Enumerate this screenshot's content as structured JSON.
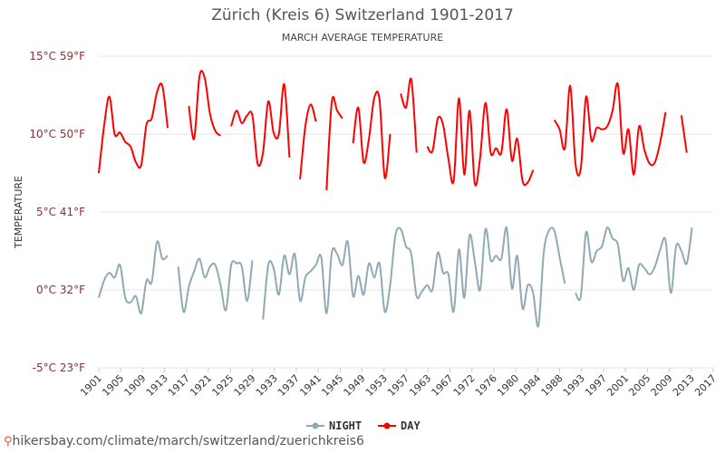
{
  "chart_data": {
    "type": "line",
    "title": "Zürich (Kreis 6) Switzerland 1901-2017",
    "subtitle": "MARCH AVERAGE TEMPERATURE",
    "ylabel": "TEMPERATURE",
    "xlabel": "",
    "ylim": [
      -5,
      15
    ],
    "xlim": [
      1901,
      2017
    ],
    "grid": true,
    "legend_position": "bottom-center",
    "y_ticks": [
      {
        "value": 15,
        "label": "15°C 59°F"
      },
      {
        "value": 10,
        "label": "10°C 50°F"
      },
      {
        "value": 5,
        "label": "5°C 41°F"
      },
      {
        "value": 0,
        "label": "0°C 32°F"
      },
      {
        "value": -5,
        "label": "-5°C 23°F"
      }
    ],
    "x_ticks": [
      "1901",
      "1905",
      "1909",
      "1913",
      "1917",
      "1921",
      "1925",
      "1929",
      "1933",
      "1937",
      "1941",
      "1945",
      "1949",
      "1953",
      "1957",
      "1963",
      "1967",
      "1972",
      "1976",
      "1980",
      "1984",
      "1988",
      "1993",
      "1997",
      "2001",
      "2005",
      "2009",
      "2013",
      "2017"
    ],
    "series": [
      {
        "name": "DAY",
        "color": "#ff0000",
        "points": [
          [
            1901,
            7.5
          ],
          [
            1902,
            10.5
          ],
          [
            1903,
            12.4
          ],
          [
            1904,
            10.0
          ],
          [
            1905,
            10.1
          ],
          [
            1906,
            9.5
          ],
          [
            1907,
            9.2
          ],
          [
            1908,
            8.2
          ],
          [
            1909,
            8.0
          ],
          [
            1910,
            10.6
          ],
          [
            1911,
            11.0
          ],
          [
            1912,
            12.7
          ],
          [
            1913,
            13.1
          ],
          [
            1914,
            10.4
          ],
          [
            1918,
            11.8
          ],
          [
            1919,
            9.7
          ],
          [
            1920,
            13.7
          ],
          [
            1921,
            13.6
          ],
          [
            1922,
            11.3
          ],
          [
            1923,
            10.2
          ],
          [
            1924,
            9.9
          ],
          [
            1926,
            10.5
          ],
          [
            1927,
            11.5
          ],
          [
            1928,
            10.7
          ],
          [
            1929,
            11.2
          ],
          [
            1930,
            11.2
          ],
          [
            1931,
            8.1
          ],
          [
            1932,
            8.8
          ],
          [
            1933,
            12.1
          ],
          [
            1934,
            10.1
          ],
          [
            1935,
            10.0
          ],
          [
            1936,
            13.2
          ],
          [
            1937,
            8.5
          ],
          [
            1939,
            7.1
          ],
          [
            1940,
            10.5
          ],
          [
            1941,
            11.9
          ],
          [
            1942,
            10.8
          ],
          [
            1944,
            6.4
          ],
          [
            1945,
            12.1
          ],
          [
            1946,
            11.5
          ],
          [
            1947,
            11.0
          ],
          [
            1949,
            9.4
          ],
          [
            1950,
            11.7
          ],
          [
            1951,
            8.2
          ],
          [
            1952,
            9.7
          ],
          [
            1953,
            12.3
          ],
          [
            1954,
            12.2
          ],
          [
            1955,
            7.2
          ],
          [
            1956,
            10.0
          ],
          [
            1958,
            12.6
          ],
          [
            1959,
            11.7
          ],
          [
            1960,
            13.5
          ],
          [
            1961,
            8.8
          ],
          [
            1963,
            9.2
          ],
          [
            1964,
            8.9
          ],
          [
            1965,
            11.0
          ],
          [
            1966,
            10.6
          ],
          [
            1967,
            8.4
          ],
          [
            1968,
            7.0
          ],
          [
            1969,
            12.3
          ],
          [
            1970,
            7.4
          ],
          [
            1971,
            11.5
          ],
          [
            1972,
            6.8
          ],
          [
            1973,
            8.5
          ],
          [
            1974,
            12.0
          ],
          [
            1975,
            8.8
          ],
          [
            1976,
            9.1
          ],
          [
            1977,
            8.8
          ],
          [
            1978,
            11.6
          ],
          [
            1979,
            8.3
          ],
          [
            1980,
            9.7
          ],
          [
            1981,
            7.0
          ],
          [
            1982,
            6.9
          ],
          [
            1983,
            7.7
          ],
          [
            1987,
            10.9
          ],
          [
            1988,
            10.3
          ],
          [
            1989,
            9.1
          ],
          [
            1990,
            13.1
          ],
          [
            1991,
            8.1
          ],
          [
            1992,
            7.8
          ],
          [
            1993,
            12.4
          ],
          [
            1994,
            9.6
          ],
          [
            1995,
            10.4
          ],
          [
            1996,
            10.3
          ],
          [
            1997,
            10.5
          ],
          [
            1998,
            11.5
          ],
          [
            1999,
            13.2
          ],
          [
            2000,
            8.8
          ],
          [
            2001,
            10.3
          ],
          [
            2002,
            7.4
          ],
          [
            2003,
            10.5
          ],
          [
            2004,
            9.0
          ],
          [
            2005,
            8.1
          ],
          [
            2006,
            8.2
          ],
          [
            2007,
            9.5
          ],
          [
            2008,
            11.4
          ],
          [
            2011,
            11.2
          ],
          [
            2012,
            8.8
          ]
        ]
      },
      {
        "name": "NIGHT",
        "color": "#90aab5",
        "points": [
          [
            1901,
            -0.5
          ],
          [
            1902,
            0.6
          ],
          [
            1903,
            1.1
          ],
          [
            1904,
            0.8
          ],
          [
            1905,
            1.6
          ],
          [
            1906,
            -0.5
          ],
          [
            1907,
            -0.8
          ],
          [
            1908,
            -0.4
          ],
          [
            1909,
            -1.5
          ],
          [
            1910,
            0.6
          ],
          [
            1911,
            0.5
          ],
          [
            1912,
            3.1
          ],
          [
            1913,
            2.0
          ],
          [
            1914,
            2.2
          ],
          [
            1916,
            1.5
          ],
          [
            1917,
            -1.4
          ],
          [
            1918,
            0.2
          ],
          [
            1919,
            1.2
          ],
          [
            1920,
            2.0
          ],
          [
            1921,
            0.8
          ],
          [
            1922,
            1.5
          ],
          [
            1923,
            1.6
          ],
          [
            1924,
            0.3
          ],
          [
            1925,
            -1.3
          ],
          [
            1926,
            1.6
          ],
          [
            1927,
            1.7
          ],
          [
            1928,
            1.5
          ],
          [
            1929,
            -0.7
          ],
          [
            1930,
            1.9
          ],
          [
            1932,
            -1.9
          ],
          [
            1933,
            1.6
          ],
          [
            1934,
            1.4
          ],
          [
            1935,
            -0.3
          ],
          [
            1936,
            2.2
          ],
          [
            1937,
            1.0
          ],
          [
            1938,
            2.3
          ],
          [
            1939,
            -0.7
          ],
          [
            1940,
            0.8
          ],
          [
            1941,
            1.2
          ],
          [
            1942,
            1.6
          ],
          [
            1943,
            2.1
          ],
          [
            1944,
            -1.5
          ],
          [
            1945,
            2.4
          ],
          [
            1946,
            2.3
          ],
          [
            1947,
            1.6
          ],
          [
            1948,
            3.1
          ],
          [
            1949,
            -0.4
          ],
          [
            1950,
            0.9
          ],
          [
            1951,
            -0.3
          ],
          [
            1952,
            1.7
          ],
          [
            1953,
            0.8
          ],
          [
            1954,
            1.7
          ],
          [
            1955,
            -1.4
          ],
          [
            1956,
            0.3
          ],
          [
            1957,
            3.5
          ],
          [
            1958,
            3.9
          ],
          [
            1959,
            2.8
          ],
          [
            1960,
            2.3
          ],
          [
            1961,
            -0.4
          ],
          [
            1962,
            -0.1
          ],
          [
            1963,
            0.3
          ],
          [
            1964,
            0.0
          ],
          [
            1965,
            2.4
          ],
          [
            1966,
            1.1
          ],
          [
            1967,
            1.0
          ],
          [
            1968,
            -1.4
          ],
          [
            1969,
            2.6
          ],
          [
            1970,
            -0.5
          ],
          [
            1971,
            3.5
          ],
          [
            1972,
            1.8
          ],
          [
            1973,
            0.0
          ],
          [
            1974,
            3.9
          ],
          [
            1975,
            1.9
          ],
          [
            1976,
            2.2
          ],
          [
            1977,
            2.0
          ],
          [
            1978,
            4.0
          ],
          [
            1979,
            0.1
          ],
          [
            1980,
            2.2
          ],
          [
            1981,
            -1.2
          ],
          [
            1982,
            0.3
          ],
          [
            1983,
            -0.2
          ],
          [
            1984,
            -2.3
          ],
          [
            1985,
            2.4
          ],
          [
            1986,
            3.8
          ],
          [
            1987,
            3.8
          ],
          [
            1988,
            2.1
          ],
          [
            1989,
            0.4
          ],
          [
            1991,
            -0.2
          ],
          [
            1992,
            -0.4
          ],
          [
            1993,
            3.7
          ],
          [
            1994,
            1.8
          ],
          [
            1995,
            2.5
          ],
          [
            1996,
            2.8
          ],
          [
            1997,
            4.0
          ],
          [
            1998,
            3.3
          ],
          [
            1999,
            2.9
          ],
          [
            2000,
            0.6
          ],
          [
            2001,
            1.4
          ],
          [
            2002,
            0.0
          ],
          [
            2003,
            1.6
          ],
          [
            2004,
            1.4
          ],
          [
            2005,
            1.0
          ],
          [
            2006,
            1.5
          ],
          [
            2007,
            2.6
          ],
          [
            2008,
            3.2
          ],
          [
            2009,
            -0.2
          ],
          [
            2010,
            2.8
          ],
          [
            2011,
            2.5
          ],
          [
            2012,
            1.7
          ],
          [
            2013,
            4.0
          ]
        ]
      }
    ]
  },
  "footer": {
    "pin_icon": "location-pin-icon",
    "text": "hikersbay.com/climate/march/switzerland/zuerichkreis6"
  }
}
